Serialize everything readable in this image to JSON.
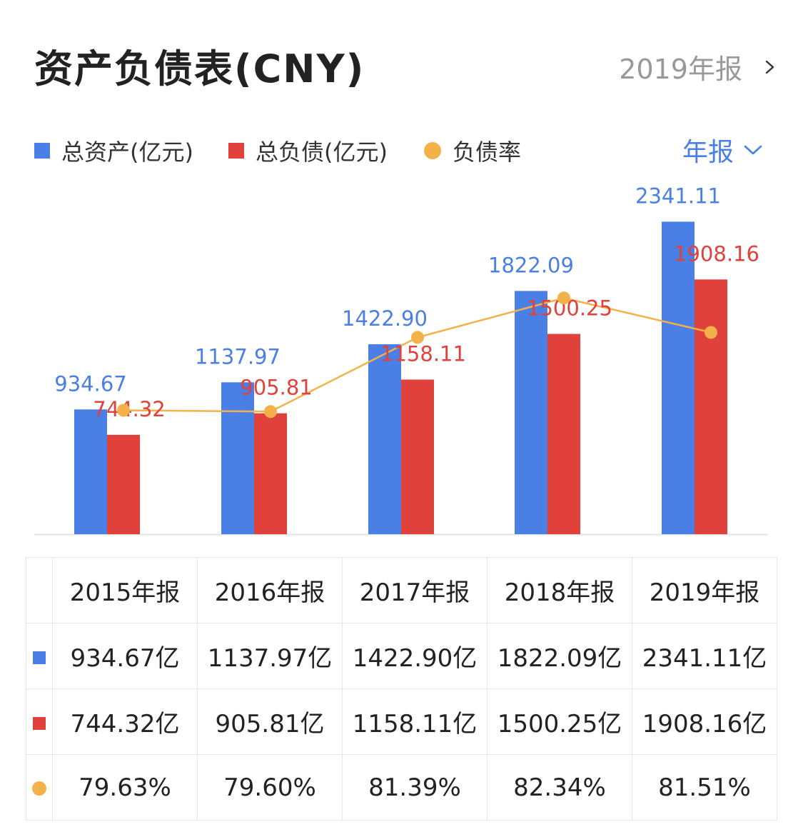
{
  "header": {
    "title": "资产负债表(CNY)",
    "report_label": "2019年报"
  },
  "legend": {
    "items": [
      {
        "label": "总资产(亿元)",
        "color": "#4a7fe6",
        "shape": "square"
      },
      {
        "label": "总负债(亿元)",
        "color": "#e0413b",
        "shape": "square"
      },
      {
        "label": "负债率",
        "color": "#f4b14a",
        "shape": "dot"
      }
    ],
    "period_select": "年报"
  },
  "chart_data": {
    "type": "bar",
    "categories": [
      "2015年报",
      "2016年报",
      "2017年报",
      "2018年报",
      "2019年报"
    ],
    "series": [
      {
        "name": "总资产(亿元)",
        "type": "bar",
        "color": "#4a7fe6",
        "values": [
          934.67,
          1137.97,
          1422.9,
          1822.09,
          2341.11
        ],
        "labels": [
          "934.67",
          "1137.97",
          "1422.90",
          "1822.09",
          "2341.11"
        ]
      },
      {
        "name": "总负债(亿元)",
        "type": "bar",
        "color": "#e0413b",
        "values": [
          744.32,
          905.81,
          1158.11,
          1500.25,
          1908.16
        ],
        "labels": [
          "744.32",
          "905.81",
          "1158.11",
          "1500.25",
          "1908.16"
        ]
      },
      {
        "name": "负债率",
        "type": "line",
        "color": "#f4b14a",
        "values": [
          79.63,
          79.6,
          81.39,
          82.34,
          81.51
        ]
      }
    ],
    "ylim": [
      0,
      2600
    ],
    "y2lim": [
      76.64,
      83.5
    ]
  },
  "table": {
    "headers": [
      "2015年报",
      "2016年报",
      "2017年报",
      "2018年报",
      "2019年报"
    ],
    "rows": [
      {
        "marker": "square",
        "color": "#4a7fe6",
        "cells": [
          "934.67亿",
          "1137.97亿",
          "1422.90亿",
          "1822.09亿",
          "2341.11亿"
        ]
      },
      {
        "marker": "square",
        "color": "#e0413b",
        "cells": [
          "744.32亿",
          "905.81亿",
          "1158.11亿",
          "1500.25亿",
          "1908.16亿"
        ]
      },
      {
        "marker": "dot",
        "color": "#f4b14a",
        "cells": [
          "79.63%",
          "79.60%",
          "81.39%",
          "82.34%",
          "81.51%"
        ]
      }
    ]
  }
}
